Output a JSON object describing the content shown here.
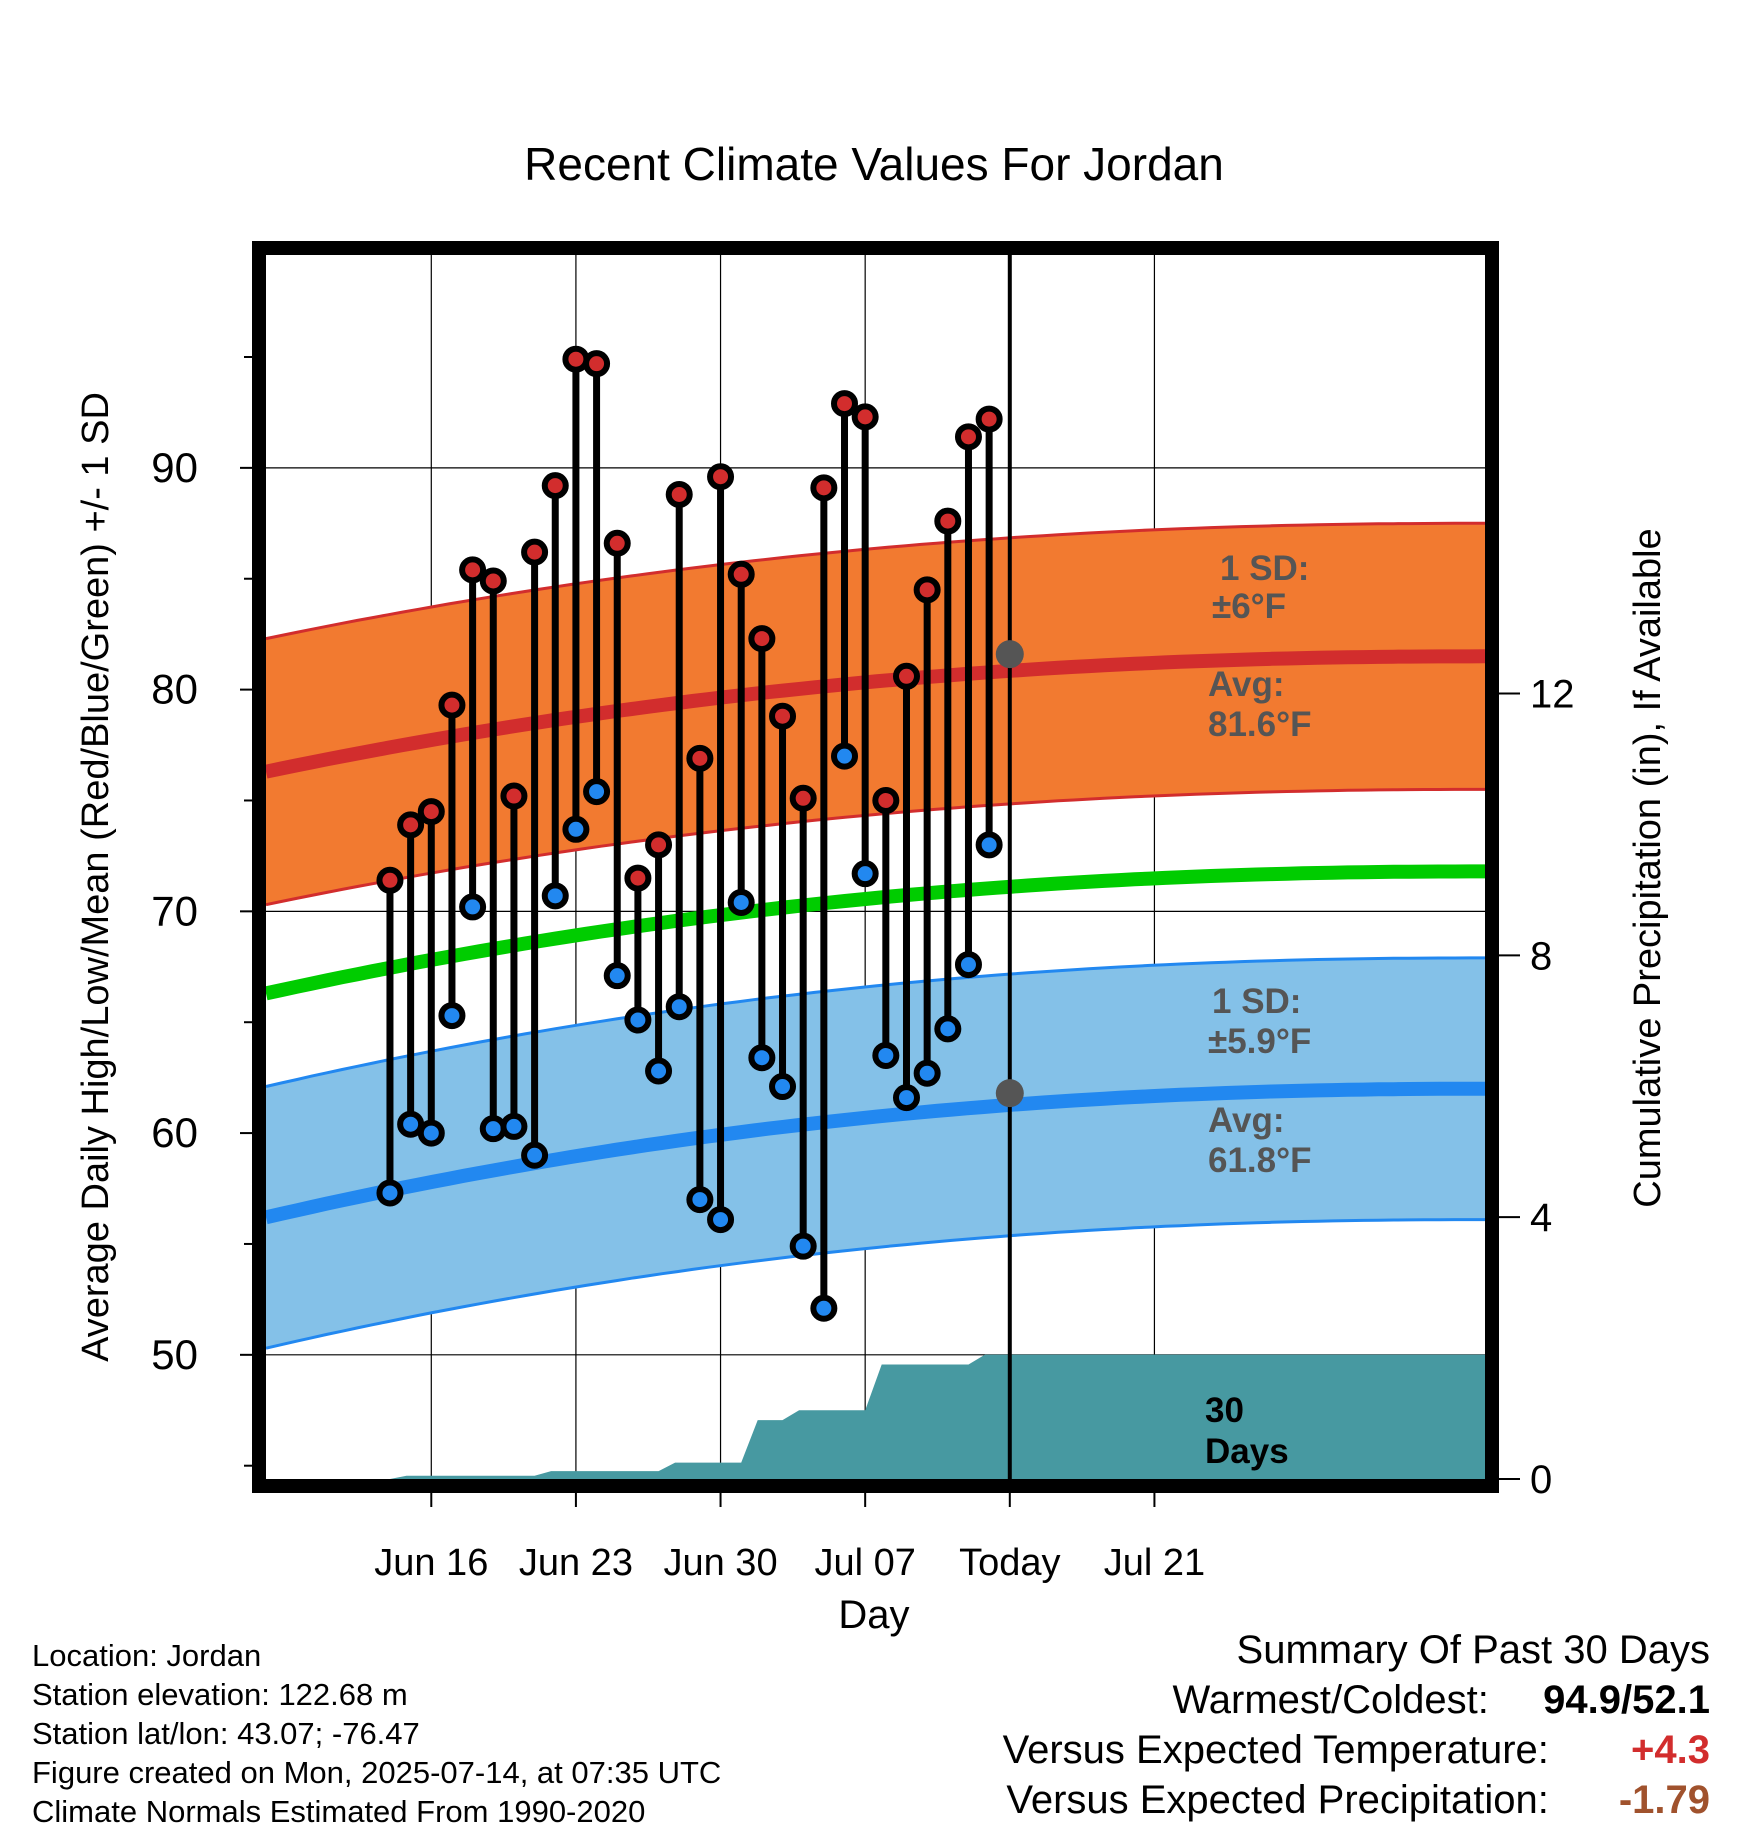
{
  "chart_data": {
    "type": "line",
    "title": "Recent Climate Values For Jordan",
    "xlabel": "Day",
    "ylabel_left": "Average Daily High/Low/Mean (Red/Blue/Green) +/- 1 SD",
    "ylabel_right": "Cumulative Precipitation (in), If Available",
    "ylim_left": [
      44.4,
      99.6
    ],
    "ylim_right": [
      0,
      18.7
    ],
    "xlim_days": [
      -32,
      27
    ],
    "x_tick_labels": [
      {
        "day": -24,
        "label": "Jun 16"
      },
      {
        "day": -17,
        "label": "Jun 23"
      },
      {
        "day": -10,
        "label": "Jun 30"
      },
      {
        "day": -3,
        "label": "Jul 07"
      },
      {
        "day": 4,
        "label": "Today"
      },
      {
        "day": 11,
        "label": "Jul 21"
      }
    ],
    "y_ticks_left": [
      50,
      60,
      70,
      80,
      90
    ],
    "y_ticks_right": [
      0,
      4,
      8,
      12
    ],
    "today_day": 4,
    "dates": [
      "Jun 14",
      "Jun 15",
      "Jun 16",
      "Jun 17",
      "Jun 18",
      "Jun 19",
      "Jun 20",
      "Jun 21",
      "Jun 22",
      "Jun 23",
      "Jun 24",
      "Jun 25",
      "Jun 26",
      "Jun 27",
      "Jun 28",
      "Jun 29",
      "Jun 30",
      "Jul 01",
      "Jul 02",
      "Jul 03",
      "Jul 04",
      "Jul 05",
      "Jul 06",
      "Jul 07",
      "Jul 08",
      "Jul 09",
      "Jul 10",
      "Jul 11",
      "Jul 12",
      "Jul 13"
    ],
    "series": [
      {
        "name": "High",
        "color": "#d22d2d",
        "values": [
          71.4,
          73.9,
          74.5,
          79.3,
          85.4,
          84.9,
          75.2,
          86.2,
          89.2,
          94.9,
          94.7,
          86.6,
          71.5,
          73.0,
          88.8,
          76.9,
          89.6,
          85.2,
          82.3,
          78.8,
          75.1,
          89.1,
          92.9,
          92.3,
          75.0,
          80.6,
          84.5,
          87.6,
          91.4,
          92.2
        ]
      },
      {
        "name": "Low",
        "color": "#2e9cf0",
        "values": [
          57.3,
          60.4,
          60.0,
          65.3,
          70.2,
          60.2,
          60.3,
          59.0,
          70.7,
          73.7,
          75.4,
          67.1,
          65.1,
          62.8,
          65.7,
          57.0,
          56.1,
          70.4,
          63.4,
          62.1,
          54.9,
          52.1,
          77.0,
          71.7,
          63.5,
          61.6,
          62.7,
          64.7,
          67.6,
          73.0
        ]
      }
    ],
    "normals": {
      "day_range": [
        -32,
        27
      ],
      "high_avg": [
        76.3,
        81.5
      ],
      "high_avg_peak": 81.6,
      "high_sd": 6,
      "low_avg": [
        56.2,
        62.0
      ],
      "low_avg_peak": 61.8,
      "low_sd": 5.9,
      "mean_avg": [
        66.3,
        71.8
      ]
    },
    "precip": {
      "steps": [
        {
          "day": -26,
          "value": 0.05
        },
        {
          "day": -19,
          "value": 0.12
        },
        {
          "day": -13,
          "value": 0.25
        },
        {
          "day": -9,
          "value": 0.9
        },
        {
          "day": -7,
          "value": 1.05
        },
        {
          "day": -3,
          "value": 1.75
        },
        {
          "day": 2,
          "value": 1.9
        }
      ],
      "end_day": 27
    },
    "annotations": {
      "high_sd_line1": "1 SD:",
      "high_sd_line2": "±6°F",
      "high_avg_line1": "Avg:",
      "high_avg_line2": "81.6°F",
      "low_sd_line1": "1 SD:",
      "low_sd_line2": "±5.9°F",
      "low_avg_line1": "Avg:",
      "low_avg_line2": "61.8°F",
      "days_line1": "30",
      "days_line2": "Days"
    },
    "colors": {
      "high_band": "#f27a30",
      "high_line": "#d22d2d",
      "low_band": "#84c1e8",
      "low_line": "#2288f0",
      "mean_line": "#00cc00",
      "precip": "#4799a1",
      "annotation": "#555555"
    }
  },
  "info": {
    "location": "Location: Jordan",
    "elevation": "Station elevation: 122.68 m",
    "latlon": "Station lat/lon: 43.07; -76.47",
    "created": "Figure created on Mon, 2025-07-14, at 07:35 UTC",
    "normals": "Climate Normals Estimated From 1990-2020"
  },
  "summary": {
    "heading": "Summary Of Past 30 Days",
    "warmest_label": "Warmest/Coldest:",
    "warmest_value": "94.9/52.1",
    "temp_label": "Versus Expected Temperature:",
    "temp_value": "+4.3",
    "temp_color": "#d22d2d",
    "precip_label": "Versus Expected Precipitation:",
    "precip_value": "-1.79",
    "precip_color": "#a0522d"
  }
}
